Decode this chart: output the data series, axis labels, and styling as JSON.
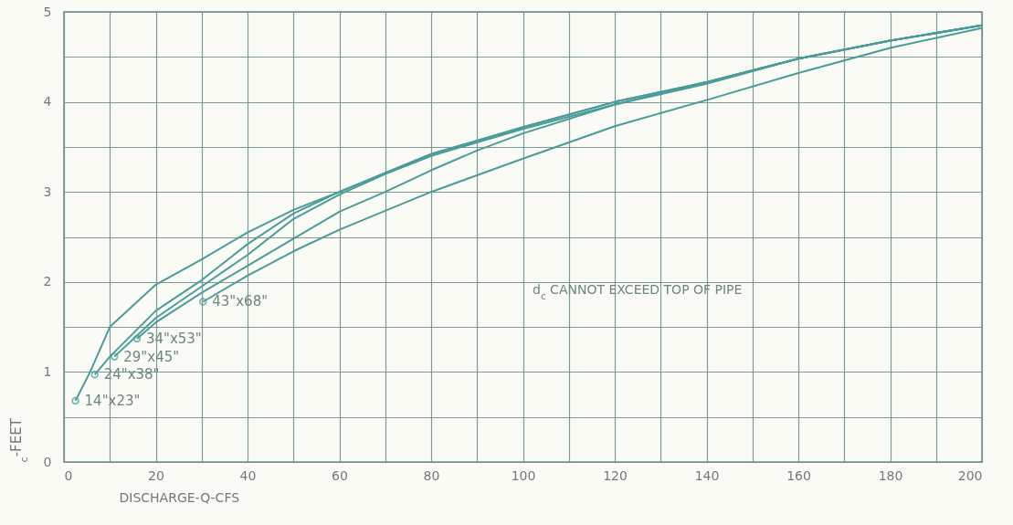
{
  "chart_data": {
    "type": "line",
    "xlabel": "DISCHARGE-Q-CFS",
    "ylabel": "$_{c}$-FEET",
    "xlim": [
      0,
      200
    ],
    "ylim": [
      0,
      5
    ],
    "xticks": [
      0,
      {
        "value": 10,
        "label": null
      },
      20,
      {
        "value": 30,
        "label": null
      },
      40,
      {
        "value": 50,
        "label": null
      },
      60,
      {
        "value": 70,
        "label": null
      },
      80,
      {
        "value": 90,
        "label": null
      },
      100,
      {
        "value": 110,
        "label": null
      },
      120,
      {
        "value": 130,
        "label": null
      },
      140,
      {
        "value": 150,
        "label": null
      },
      160,
      {
        "value": 170,
        "label": null
      },
      180,
      {
        "value": 190,
        "label": null
      },
      200
    ],
    "yticks": [
      0,
      {
        "value": 0.5,
        "label": null
      },
      1,
      {
        "value": 1.5,
        "label": null
      },
      2,
      {
        "value": 2.5,
        "label": null
      },
      3,
      {
        "value": 3.5,
        "label": null
      },
      4,
      {
        "value": 4.5,
        "label": null
      },
      5
    ],
    "grid": true,
    "annotations": [
      "d$_{c}$ CANNOT EXCEED TOP OF PIPE"
    ],
    "series": [
      {
        "name": "14\"x23\"",
        "color": "#4a9c9a",
        "x": [
          2.5,
          5.7,
          10,
          20,
          30,
          40,
          50,
          60,
          80,
          100,
          120,
          140,
          160,
          180,
          200
        ],
        "values": [
          0.68,
          1.0,
          1.5,
          1.97,
          2.25,
          2.55,
          2.8,
          3.0,
          3.42,
          3.72,
          4.0,
          4.22,
          4.48,
          4.68,
          4.85
        ]
      },
      {
        "name": "24\"x38\"",
        "color": "#4a9c9a",
        "x": [
          6.7,
          10,
          20,
          30,
          40,
          50,
          60,
          80,
          100,
          120,
          140,
          160,
          180,
          200
        ],
        "values": [
          0.97,
          1.17,
          1.68,
          2.02,
          2.42,
          2.76,
          3.0,
          3.42,
          3.72,
          4.0,
          4.22,
          4.48,
          4.68,
          4.85
        ]
      },
      {
        "name": "29\"x45\"",
        "color": "#4a9c9a",
        "x": [
          11,
          20,
          30,
          40,
          50,
          60,
          70,
          80,
          100,
          120,
          140,
          160,
          180,
          200
        ],
        "values": [
          1.17,
          1.6,
          1.95,
          2.3,
          2.7,
          2.97,
          3.2,
          3.4,
          3.7,
          3.97,
          4.22,
          4.48,
          4.68,
          4.85
        ]
      },
      {
        "name": "34\"x53\"",
        "color": "#4a9c9a",
        "x": [
          15.9,
          20,
          30,
          40,
          50,
          60,
          70,
          80,
          90,
          100,
          120,
          140,
          160,
          180,
          200
        ],
        "values": [
          1.37,
          1.55,
          1.88,
          2.18,
          2.48,
          2.78,
          3.0,
          3.24,
          3.46,
          3.65,
          3.97,
          4.2,
          4.48,
          4.68,
          4.85
        ]
      },
      {
        "name": "43\"x68\"",
        "color": "#4a9c9a",
        "x": [
          30.3,
          40,
          50,
          60,
          80,
          100,
          120,
          140,
          160,
          180,
          200
        ],
        "values": [
          1.78,
          2.07,
          2.34,
          2.58,
          3.0,
          3.37,
          3.73,
          4.02,
          4.32,
          4.6,
          4.82
        ]
      }
    ]
  }
}
